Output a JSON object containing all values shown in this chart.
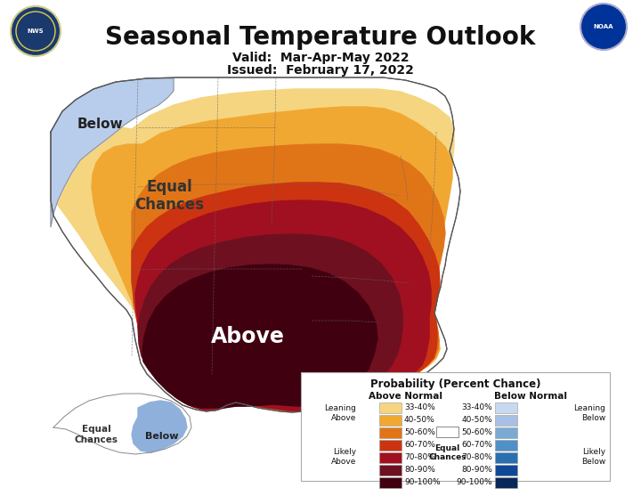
{
  "title": "Seasonal Temperature Outlook",
  "valid_text": "Valid:  Mar-Apr-May 2022",
  "issued_text": "Issued:  February 17, 2022",
  "background_color": "#ffffff",
  "title_fontsize": 20,
  "subtitle_fontsize": 10,
  "legend_title": "Probability (Percent Chance)",
  "above_label": "Above Normal",
  "below_label": "Below Normal",
  "equal_chances_label": "Equal\nChances",
  "leaning_above_label": "Leaning\nAbove",
  "likely_above_label": "Likely\nAbove",
  "leaning_below_label": "Leaning\nBelow",
  "likely_below_label": "Likely\nBelow",
  "above_normal_labels": [
    "33-40%",
    "40-50%",
    "50-60%",
    "60-70%",
    "70-80%",
    "80-90%",
    "90-100%"
  ],
  "below_normal_labels": [
    "33-40%",
    "40-50%",
    "50-60%",
    "60-70%",
    "70-80%",
    "80-90%",
    "90-100%"
  ],
  "above_colors": [
    "#F5D580",
    "#F0A832",
    "#E07518",
    "#CC3310",
    "#A01020",
    "#6E1020",
    "#400010"
  ],
  "below_colors": [
    "#C8D8F0",
    "#A8C0E4",
    "#7AAAD4",
    "#5090C8",
    "#2870B0",
    "#104898",
    "#082858"
  ],
  "color_ec": "#ffffff",
  "color_below_pnw": "#B8CCEC",
  "color_below_ak": "#90B0DC",
  "map_label_above": "Above",
  "map_label_equal_main": "Equal\nChances",
  "map_label_below_nw": "Below",
  "map_label_equal_ak": "Equal\nChances",
  "map_label_below_ak": "Below",
  "figsize": [
    7.2,
    5.57
  ],
  "dpi": 100
}
